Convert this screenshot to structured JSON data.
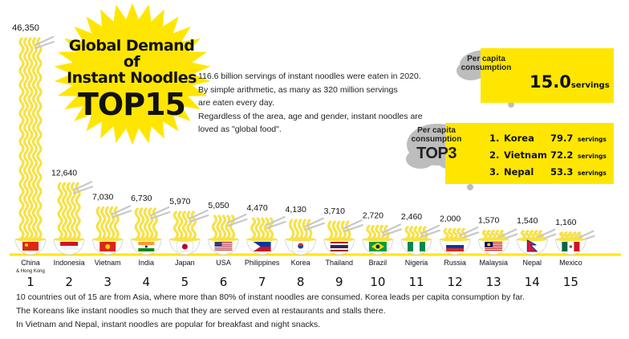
{
  "header": {
    "title_line1": "Global Demand of",
    "title_line2": "Instant Noodles",
    "title_line3": "TOP15"
  },
  "intro": [
    "116.6 billion servings of instant noodles were eaten in 2020.",
    "By simple arithmetic, as many as 320 million servings",
    "are eaten every day.",
    "Regardless of the area, age and gender, instant noodles are",
    "loved as \"global food\"."
  ],
  "per_capita": {
    "label": "Per capita consumption",
    "value": "15.0",
    "unit": "servings"
  },
  "top3": {
    "label_small": "Per capita consumption",
    "label_big": "TOP3",
    "items": [
      {
        "rank": "1.",
        "country": "Korea",
        "value": "79.7",
        "unit": "servings"
      },
      {
        "rank": "2.",
        "country": "Vietnam",
        "value": "72.2",
        "unit": "servings"
      },
      {
        "rank": "3.",
        "country": "Nepal",
        "value": "53.3",
        "unit": "servings"
      }
    ]
  },
  "bottom_notes": [
    "10 countries out of 15 are from Asia, where more than 80% of instant noodles are consumed. Korea leads per capita consumption by far.",
    "The Koreans like instant noodles so much that they are served even at restaurants and stalls there.",
    "In Vietnam and Nepal, instant noodles are popular for breakfast and night snacks."
  ],
  "colors": {
    "accent_yellow": "#ffe600",
    "noodle_yellow": "#f6e24a",
    "bowl_white": "#ffffff",
    "cloud_gray": "#bdbdbd",
    "text_dark": "#111111"
  },
  "chart_data": {
    "type": "bar",
    "title": "",
    "xlabel": "",
    "ylabel": "",
    "categories": [
      "China",
      "Indonesia",
      "Vietnam",
      "India",
      "Japan",
      "USA",
      "Philippines",
      "Korea",
      "Thailand",
      "Brazil",
      "Nigeria",
      "Russia",
      "Malaysia",
      "Nepal",
      "Mexico"
    ],
    "category_sublabels": [
      "& Hong Kong",
      "",
      "",
      "",
      "",
      "",
      "",
      "",
      "",
      "",
      "",
      "",
      "",
      "",
      ""
    ],
    "ranks": [
      "1",
      "2",
      "3",
      "4",
      "5",
      "6",
      "7",
      "8",
      "9",
      "10",
      "11",
      "12",
      "13",
      "14",
      "15"
    ],
    "values": [
      46350,
      12640,
      7030,
      6730,
      5970,
      5050,
      4470,
      4130,
      3710,
      2720,
      2460,
      2000,
      1570,
      1540,
      1160
    ],
    "value_labels": [
      "46,350",
      "12,640",
      "7,030",
      "6,730",
      "5,970",
      "5,050",
      "4,470",
      "4,130",
      "3,710",
      "2,720",
      "2,460",
      "2,000",
      "1,570",
      "1,540",
      "1,160"
    ],
    "bar_style": "noodle strands rising from bowls decorated with national flags",
    "grid": false,
    "ylim": [
      0,
      46350
    ]
  }
}
